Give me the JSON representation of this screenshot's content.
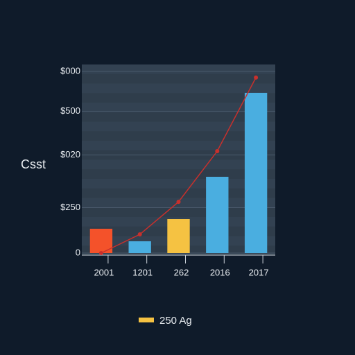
{
  "chart_data": {
    "type": "bar",
    "ylabel": "Csst",
    "categories": [
      "2001",
      "1201",
      "262",
      "2016",
      "2017"
    ],
    "series": [
      {
        "name": "250 Ag",
        "color": "#f5c242",
        "colors": [
          "#f4522a",
          "#4aaee0",
          "#f5c242",
          "#4aaee0",
          "#4aaee0"
        ],
        "values": [
          134,
          65,
          187,
          420,
          882
        ]
      },
      {
        "type": "line",
        "color": "#c8302c",
        "values": [
          0,
          103,
          282,
          561,
          966
        ]
      }
    ],
    "ylim": [
      0,
      1000
    ],
    "yticks": [
      0,
      {
        "value": 250,
        "label": "$250"
      },
      {
        "value": 540,
        "label": "$020"
      },
      {
        "value": 780,
        "label": "$500"
      },
      {
        "value": 1000,
        "label": "$000"
      }
    ],
    "grid": true
  }
}
